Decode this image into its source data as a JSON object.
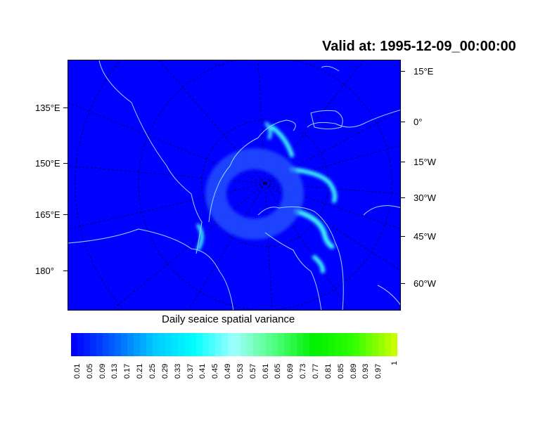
{
  "title": "Valid at: 1995-12-09_00:00:00",
  "map": {
    "background_color": "#0000ff",
    "coastline_color": "#8fd8ff",
    "left_labels": [
      "135°E",
      "150°E",
      "165°E",
      "180°"
    ],
    "right_labels": [
      "15°E",
      "0°",
      "15°W",
      "30°W",
      "45°W",
      "60°W"
    ]
  },
  "colorbar": {
    "title": "Daily seaice spatial variance",
    "labels": [
      "0.01",
      "0.05",
      "0.09",
      "0.13",
      "0.17",
      "0.21",
      "0.25",
      "0.29",
      "0.33",
      "0.37",
      "0.41",
      "0.45",
      "0.49",
      "0.53",
      "0.57",
      "0.61",
      "0.65",
      "0.69",
      "0.73",
      "0.77",
      "0.81",
      "0.85",
      "0.89",
      "0.93",
      "0.97",
      "1"
    ],
    "color_stops": [
      "#0000ff",
      "#0060ff",
      "#00c8ff",
      "#00ffff",
      "#a0ffff",
      "#50ff80",
      "#00f000",
      "#30ff00",
      "#c8ff00"
    ]
  }
}
